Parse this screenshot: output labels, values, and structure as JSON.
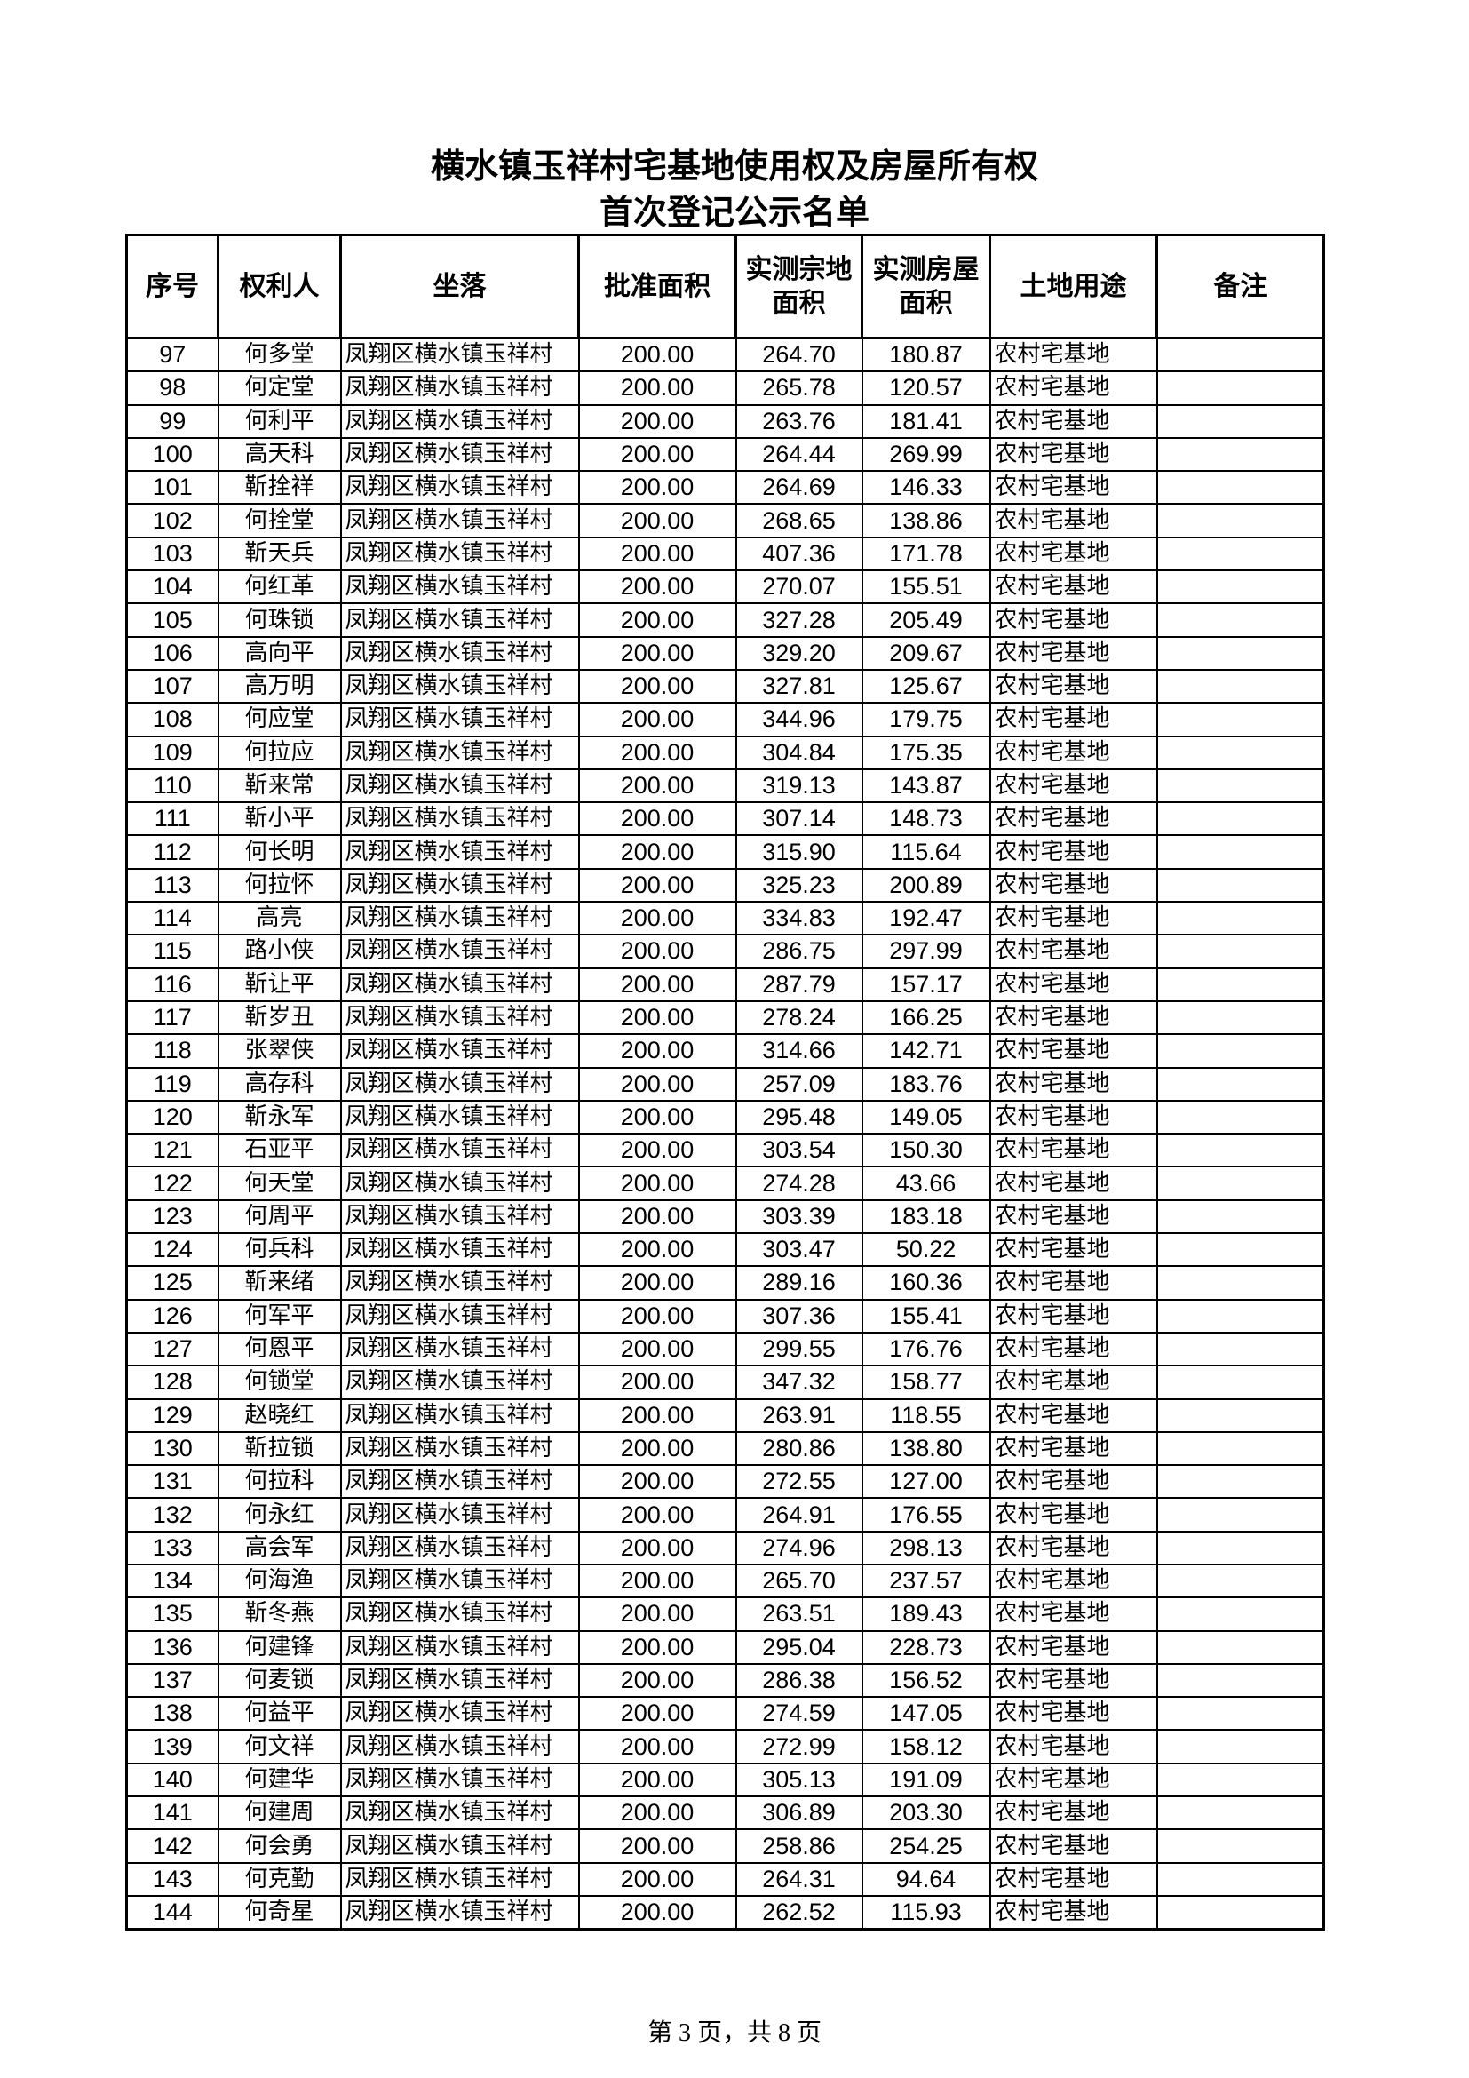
{
  "title_line1": "横水镇玉祥村宅基地使用权及房屋所有权",
  "title_line2": "首次登记公示名单",
  "headers": [
    "序号",
    "权利人",
    "坐落",
    "批准面积",
    "实测宗地面积",
    "实测房屋面积",
    "土地用途",
    "备注"
  ],
  "rows": [
    [
      "97",
      "何多堂",
      "凤翔区横水镇玉祥村",
      "200.00",
      "264.70",
      "180.87",
      "农村宅基地",
      ""
    ],
    [
      "98",
      "何定堂",
      "凤翔区横水镇玉祥村",
      "200.00",
      "265.78",
      "120.57",
      "农村宅基地",
      ""
    ],
    [
      "99",
      "何利平",
      "凤翔区横水镇玉祥村",
      "200.00",
      "263.76",
      "181.41",
      "农村宅基地",
      ""
    ],
    [
      "100",
      "高天科",
      "凤翔区横水镇玉祥村",
      "200.00",
      "264.44",
      "269.99",
      "农村宅基地",
      ""
    ],
    [
      "101",
      "靳拴祥",
      "凤翔区横水镇玉祥村",
      "200.00",
      "264.69",
      "146.33",
      "农村宅基地",
      ""
    ],
    [
      "102",
      "何拴堂",
      "凤翔区横水镇玉祥村",
      "200.00",
      "268.65",
      "138.86",
      "农村宅基地",
      ""
    ],
    [
      "103",
      "靳天兵",
      "凤翔区横水镇玉祥村",
      "200.00",
      "407.36",
      "171.78",
      "农村宅基地",
      ""
    ],
    [
      "104",
      "何红革",
      "凤翔区横水镇玉祥村",
      "200.00",
      "270.07",
      "155.51",
      "农村宅基地",
      ""
    ],
    [
      "105",
      "何珠锁",
      "凤翔区横水镇玉祥村",
      "200.00",
      "327.28",
      "205.49",
      "农村宅基地",
      ""
    ],
    [
      "106",
      "高向平",
      "凤翔区横水镇玉祥村",
      "200.00",
      "329.20",
      "209.67",
      "农村宅基地",
      ""
    ],
    [
      "107",
      "高万明",
      "凤翔区横水镇玉祥村",
      "200.00",
      "327.81",
      "125.67",
      "农村宅基地",
      ""
    ],
    [
      "108",
      "何应堂",
      "凤翔区横水镇玉祥村",
      "200.00",
      "344.96",
      "179.75",
      "农村宅基地",
      ""
    ],
    [
      "109",
      "何拉应",
      "凤翔区横水镇玉祥村",
      "200.00",
      "304.84",
      "175.35",
      "农村宅基地",
      ""
    ],
    [
      "110",
      "靳来常",
      "凤翔区横水镇玉祥村",
      "200.00",
      "319.13",
      "143.87",
      "农村宅基地",
      ""
    ],
    [
      "111",
      "靳小平",
      "凤翔区横水镇玉祥村",
      "200.00",
      "307.14",
      "148.73",
      "农村宅基地",
      ""
    ],
    [
      "112",
      "何长明",
      "凤翔区横水镇玉祥村",
      "200.00",
      "315.90",
      "115.64",
      "农村宅基地",
      ""
    ],
    [
      "113",
      "何拉怀",
      "凤翔区横水镇玉祥村",
      "200.00",
      "325.23",
      "200.89",
      "农村宅基地",
      ""
    ],
    [
      "114",
      "高亮",
      "凤翔区横水镇玉祥村",
      "200.00",
      "334.83",
      "192.47",
      "农村宅基地",
      ""
    ],
    [
      "115",
      "路小侠",
      "凤翔区横水镇玉祥村",
      "200.00",
      "286.75",
      "297.99",
      "农村宅基地",
      ""
    ],
    [
      "116",
      "靳让平",
      "凤翔区横水镇玉祥村",
      "200.00",
      "287.79",
      "157.17",
      "农村宅基地",
      ""
    ],
    [
      "117",
      "靳岁丑",
      "凤翔区横水镇玉祥村",
      "200.00",
      "278.24",
      "166.25",
      "农村宅基地",
      ""
    ],
    [
      "118",
      "张翠侠",
      "凤翔区横水镇玉祥村",
      "200.00",
      "314.66",
      "142.71",
      "农村宅基地",
      ""
    ],
    [
      "119",
      "高存科",
      "凤翔区横水镇玉祥村",
      "200.00",
      "257.09",
      "183.76",
      "农村宅基地",
      ""
    ],
    [
      "120",
      "靳永军",
      "凤翔区横水镇玉祥村",
      "200.00",
      "295.48",
      "149.05",
      "农村宅基地",
      ""
    ],
    [
      "121",
      "石亚平",
      "凤翔区横水镇玉祥村",
      "200.00",
      "303.54",
      "150.30",
      "农村宅基地",
      ""
    ],
    [
      "122",
      "何天堂",
      "凤翔区横水镇玉祥村",
      "200.00",
      "274.28",
      "43.66",
      "农村宅基地",
      ""
    ],
    [
      "123",
      "何周平",
      "凤翔区横水镇玉祥村",
      "200.00",
      "303.39",
      "183.18",
      "农村宅基地",
      ""
    ],
    [
      "124",
      "何兵科",
      "凤翔区横水镇玉祥村",
      "200.00",
      "303.47",
      "50.22",
      "农村宅基地",
      ""
    ],
    [
      "125",
      "靳来绪",
      "凤翔区横水镇玉祥村",
      "200.00",
      "289.16",
      "160.36",
      "农村宅基地",
      ""
    ],
    [
      "126",
      "何军平",
      "凤翔区横水镇玉祥村",
      "200.00",
      "307.36",
      "155.41",
      "农村宅基地",
      ""
    ],
    [
      "127",
      "何恩平",
      "凤翔区横水镇玉祥村",
      "200.00",
      "299.55",
      "176.76",
      "农村宅基地",
      ""
    ],
    [
      "128",
      "何锁堂",
      "凤翔区横水镇玉祥村",
      "200.00",
      "347.32",
      "158.77",
      "农村宅基地",
      ""
    ],
    [
      "129",
      "赵晓红",
      "凤翔区横水镇玉祥村",
      "200.00",
      "263.91",
      "118.55",
      "农村宅基地",
      ""
    ],
    [
      "130",
      "靳拉锁",
      "凤翔区横水镇玉祥村",
      "200.00",
      "280.86",
      "138.80",
      "农村宅基地",
      ""
    ],
    [
      "131",
      "何拉科",
      "凤翔区横水镇玉祥村",
      "200.00",
      "272.55",
      "127.00",
      "农村宅基地",
      ""
    ],
    [
      "132",
      "何永红",
      "凤翔区横水镇玉祥村",
      "200.00",
      "264.91",
      "176.55",
      "农村宅基地",
      ""
    ],
    [
      "133",
      "高会军",
      "凤翔区横水镇玉祥村",
      "200.00",
      "274.96",
      "298.13",
      "农村宅基地",
      ""
    ],
    [
      "134",
      "何海渔",
      "凤翔区横水镇玉祥村",
      "200.00",
      "265.70",
      "237.57",
      "农村宅基地",
      ""
    ],
    [
      "135",
      "靳冬燕",
      "凤翔区横水镇玉祥村",
      "200.00",
      "263.51",
      "189.43",
      "农村宅基地",
      ""
    ],
    [
      "136",
      "何建锋",
      "凤翔区横水镇玉祥村",
      "200.00",
      "295.04",
      "228.73",
      "农村宅基地",
      ""
    ],
    [
      "137",
      "何麦锁",
      "凤翔区横水镇玉祥村",
      "200.00",
      "286.38",
      "156.52",
      "农村宅基地",
      ""
    ],
    [
      "138",
      "何益平",
      "凤翔区横水镇玉祥村",
      "200.00",
      "274.59",
      "147.05",
      "农村宅基地",
      ""
    ],
    [
      "139",
      "何文祥",
      "凤翔区横水镇玉祥村",
      "200.00",
      "272.99",
      "158.12",
      "农村宅基地",
      ""
    ],
    [
      "140",
      "何建华",
      "凤翔区横水镇玉祥村",
      "200.00",
      "305.13",
      "191.09",
      "农村宅基地",
      ""
    ],
    [
      "141",
      "何建周",
      "凤翔区横水镇玉祥村",
      "200.00",
      "306.89",
      "203.30",
      "农村宅基地",
      ""
    ],
    [
      "142",
      "何会勇",
      "凤翔区横水镇玉祥村",
      "200.00",
      "258.86",
      "254.25",
      "农村宅基地",
      ""
    ],
    [
      "143",
      "何克勤",
      "凤翔区横水镇玉祥村",
      "200.00",
      "264.31",
      "94.64",
      "农村宅基地",
      ""
    ],
    [
      "144",
      "何奇星",
      "凤翔区横水镇玉祥村",
      "200.00",
      "262.52",
      "115.93",
      "农村宅基地",
      ""
    ]
  ],
  "footer": "第 3 页，共 8 页"
}
